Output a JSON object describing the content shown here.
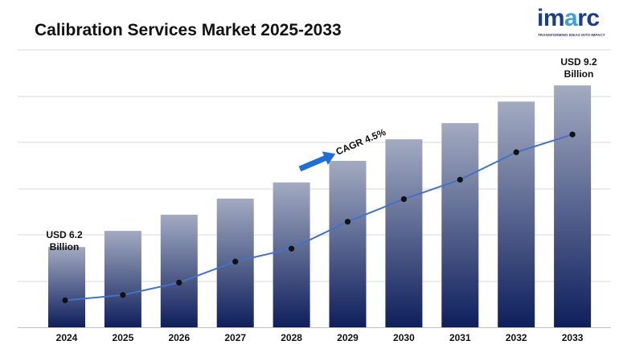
{
  "header": {
    "title": "Calibration Services Market 2025-2033"
  },
  "logo": {
    "word": "imarc",
    "tagline": "TRANSFORMING IDEAS INTO IMPACT",
    "color_primary": "#1a3c8e",
    "color_accent": "#3aa0e0"
  },
  "chart_data": {
    "type": "bar",
    "title": "Calibration Services Market 2025-2033",
    "categories": [
      "2024",
      "2025",
      "2026",
      "2027",
      "2028",
      "2029",
      "2030",
      "2031",
      "2032",
      "2033"
    ],
    "values": [
      6.2,
      6.5,
      6.8,
      7.1,
      7.4,
      7.8,
      8.2,
      8.5,
      8.9,
      9.2
    ],
    "unit": "USD Billion",
    "ylim": [
      4.71,
      9.86
    ],
    "xlabel": "",
    "ylabel": "",
    "grid": true,
    "legend": "none",
    "trend_line": {
      "values": [
        5.21,
        5.31,
        5.54,
        5.93,
        6.17,
        6.67,
        7.09,
        7.45,
        7.96,
        8.29
      ]
    },
    "annotations": {
      "first_label": [
        "USD 6.2",
        "Billion"
      ],
      "last_label": [
        "USD 9.2",
        "Billion"
      ],
      "cagr": "CAGR 4.5%"
    },
    "colors": {
      "bar_top": "#a3abc1",
      "bar_bottom": "#0e1f5c",
      "line": "#4472c4",
      "marker": "#111111",
      "arrow": "#1f6fd6",
      "grid": "#d9d9d9"
    }
  }
}
